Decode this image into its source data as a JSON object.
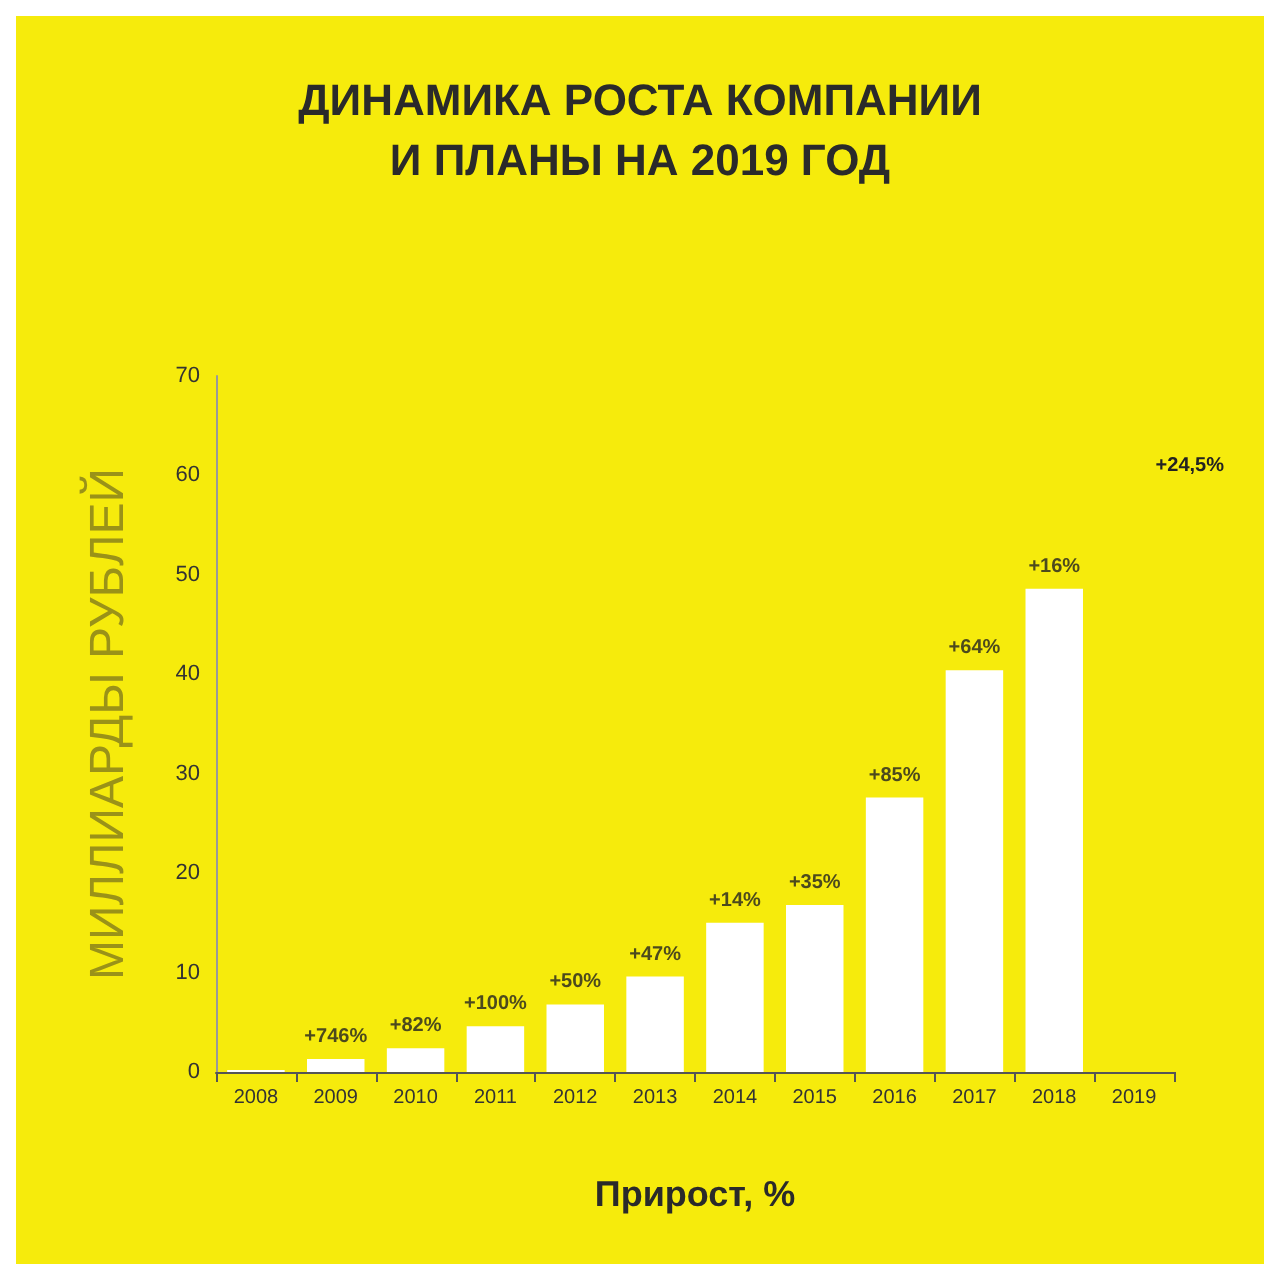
{
  "chart_data": {
    "type": "bar",
    "title": "ДИНАМИКА РОСТА КОМПАНИИ\nИ ПЛАНЫ НА 2019 ГОД",
    "xlabel": "Прирост, %",
    "ylabel": "МИЛЛИАРДЫ РУБЛЕЙ",
    "categories": [
      "2008",
      "2009",
      "2010",
      "2011",
      "2012",
      "2013",
      "2014",
      "2015",
      "2016",
      "2017",
      "2018",
      "2019"
    ],
    "values": [
      0.2,
      1.3,
      2.4,
      4.6,
      6.8,
      9.6,
      15.0,
      16.8,
      27.6,
      40.4,
      48.6,
      null
    ],
    "annotations": [
      {
        "text": "+746%",
        "x": "2009",
        "y": 1.3
      },
      {
        "text": "+82%",
        "x": "2010",
        "y": 2.4
      },
      {
        "text": "+100%",
        "x": "2011",
        "y": 4.6
      },
      {
        "text": "+50%",
        "x": "2012",
        "y": 6.8
      },
      {
        "text": "+47%",
        "x": "2013",
        "y": 9.6
      },
      {
        "text": "+14%",
        "x": "2014",
        "y": 15.0
      },
      {
        "text": "+35%",
        "x": "2015",
        "y": 16.8
      },
      {
        "text": "+85%",
        "x": "2016",
        "y": 27.6
      },
      {
        "text": "+64%",
        "x": "2017",
        "y": 40.4
      },
      {
        "text": "+16%",
        "x": "2018",
        "y": 48.6
      },
      "+24,5%"
    ],
    "color": "#ffffff",
    "ylim": [
      0,
      70
    ],
    "yticks": [
      0,
      10,
      20,
      30,
      40,
      50,
      60,
      70
    ],
    "grid": false
  }
}
